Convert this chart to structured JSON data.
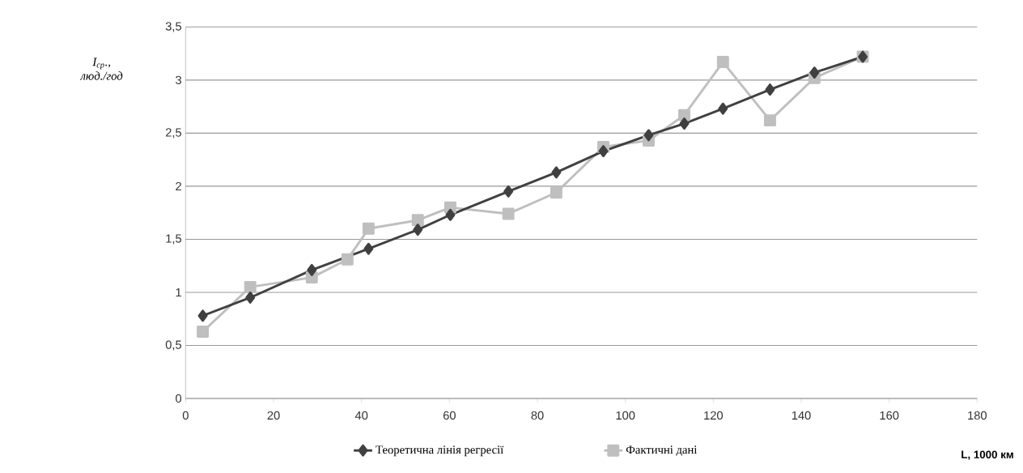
{
  "chart_data": {
    "type": "line",
    "xlabel": "L, 1000 км",
    "ylabel": "I$_{ср}$., люд./год",
    "xlim": [
      0,
      180
    ],
    "xticks": [
      0,
      20,
      40,
      60,
      80,
      100,
      120,
      140,
      160,
      180
    ],
    "ylim": [
      0,
      3.5
    ],
    "yticks": [
      0,
      {
        "value": 0.5,
        "label": "0,5"
      },
      1,
      {
        "value": 1.5,
        "label": "1,5"
      },
      2,
      {
        "value": 2.5,
        "label": "2,5"
      },
      3,
      {
        "value": 3.5,
        "label": "3,5"
      }
    ],
    "grid": "y",
    "legend": "bottom",
    "line_style": "solid",
    "series": [
      {
        "name": "Теоретична лінія регресії",
        "color": "#404040",
        "marker": "diamond",
        "x": [
          3.9,
          14.7,
          28.7,
          41.6,
          52.8,
          60.2,
          73.4,
          84.3,
          95,
          105.3,
          113.4,
          122.2,
          132.9,
          143,
          154
        ],
        "values": [
          0.78,
          0.95,
          1.21,
          1.41,
          1.59,
          1.73,
          1.95,
          2.13,
          2.33,
          2.48,
          2.59,
          2.73,
          2.91,
          3.07,
          3.22
        ]
      },
      {
        "name": "Фактичні дані",
        "color": "#bfbfbf",
        "marker": "square",
        "x": [
          3.9,
          14.7,
          28.7,
          36.8,
          41.6,
          52.8,
          60.2,
          73.4,
          84.3,
          95,
          105.3,
          113.4,
          122.2,
          132.9,
          143,
          154
        ],
        "values": [
          0.63,
          1.05,
          1.14,
          1.31,
          1.6,
          1.68,
          1.8,
          1.74,
          1.94,
          2.37,
          2.43,
          2.67,
          3.17,
          2.62,
          3.02,
          3.22
        ]
      }
    ]
  }
}
